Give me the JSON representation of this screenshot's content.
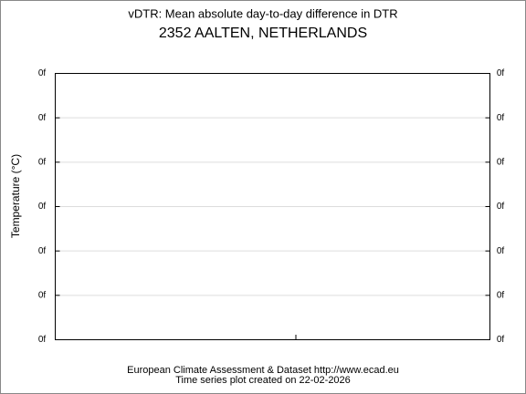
{
  "title": "vDTR: Mean absolute day-to-day difference in DTR",
  "subtitle": "2352 AALTEN, NETHERLANDS",
  "y_axis_label": "Temperature (°C)",
  "left_tick_labels": [
    "0f",
    "0f",
    "0f",
    "0f",
    "0f",
    "0f",
    "0f"
  ],
  "right_tick_labels": [
    "0f",
    "0f",
    "0f",
    "0f",
    "0f",
    "0f",
    "0f"
  ],
  "footer": [
    "European Climate Assessment & Dataset  http://www.ecad.eu",
    "Time series plot created on 22-02-2026"
  ]
}
